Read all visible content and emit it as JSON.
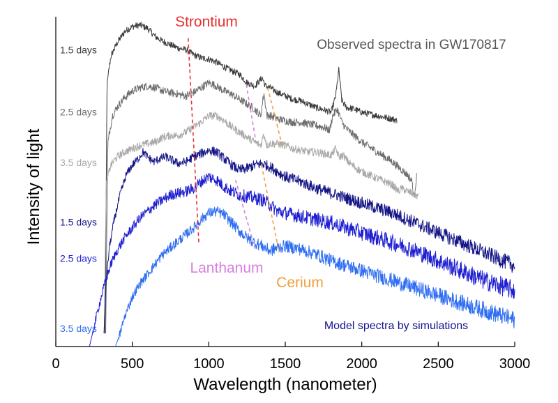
{
  "chart_data": {
    "type": "line",
    "xlabel": "Wavelength (nanometer)",
    "ylabel": "Intensity of light",
    "xlim": [
      0,
      3000
    ],
    "xticks": [
      0,
      500,
      1000,
      1500,
      2000,
      2500,
      3000
    ],
    "ylim": [
      0,
      1
    ],
    "grid": false,
    "annotations": {
      "strontium": "Strontium",
      "lanthanum": "Lanthanum",
      "cerium": "Cerium",
      "observed": "Observed spectra in GW170817",
      "model": "Model spectra by simulations"
    },
    "annotation_colors": {
      "strontium": "#e8302c",
      "lanthanum": "#d77ee0",
      "cerium": "#f0a040",
      "observed": "#555555",
      "model": "#14148c"
    },
    "series": [
      {
        "name": "1.5 days",
        "group": "observed",
        "color": "#3a3a3a",
        "noise": 0.01,
        "x": [
          322,
          335,
          360,
          400,
          450,
          500,
          550,
          600,
          650,
          700,
          750,
          800,
          850,
          900,
          950,
          1000,
          1050,
          1100,
          1150,
          1200,
          1250,
          1300,
          1350,
          1370,
          1400,
          1450,
          1500,
          1550,
          1600,
          1650,
          1700,
          1750,
          1800,
          1830,
          1850,
          1870,
          1900,
          1950,
          2000,
          2050,
          2100,
          2150,
          2200,
          2230
        ],
        "y": [
          0.04,
          0.8,
          0.88,
          0.92,
          0.955,
          0.97,
          0.975,
          0.965,
          0.94,
          0.925,
          0.915,
          0.905,
          0.9,
          0.885,
          0.875,
          0.872,
          0.862,
          0.848,
          0.836,
          0.826,
          0.8,
          0.79,
          0.815,
          0.79,
          0.785,
          0.77,
          0.76,
          0.75,
          0.745,
          0.735,
          0.725,
          0.718,
          0.71,
          0.76,
          0.84,
          0.745,
          0.725,
          0.72,
          0.71,
          0.705,
          0.7,
          0.695,
          0.69,
          0.685
        ]
      },
      {
        "name": "2.5 days",
        "group": "observed",
        "color": "#6e6e6e",
        "noise": 0.012,
        "x": [
          326,
          340,
          370,
          400,
          450,
          500,
          550,
          600,
          650,
          700,
          750,
          800,
          850,
          900,
          950,
          1000,
          1050,
          1100,
          1150,
          1200,
          1250,
          1300,
          1340,
          1360,
          1380,
          1400,
          1450,
          1500,
          1550,
          1600,
          1650,
          1700,
          1750,
          1790,
          1810,
          1840,
          1870,
          1900,
          1950,
          2000,
          2050,
          2100,
          2150,
          2200,
          2250,
          2300,
          2330,
          2340,
          2360
        ],
        "y": [
          0.04,
          0.62,
          0.7,
          0.725,
          0.755,
          0.775,
          0.785,
          0.79,
          0.785,
          0.775,
          0.77,
          0.765,
          0.76,
          0.77,
          0.785,
          0.8,
          0.79,
          0.775,
          0.765,
          0.75,
          0.735,
          0.72,
          0.7,
          0.77,
          0.7,
          0.7,
          0.69,
          0.685,
          0.68,
          0.68,
          0.675,
          0.67,
          0.665,
          0.655,
          0.7,
          0.72,
          0.68,
          0.66,
          0.64,
          0.62,
          0.605,
          0.59,
          0.575,
          0.56,
          0.54,
          0.52,
          0.5,
          0.45,
          0.52
        ]
      },
      {
        "name": "3.5 days",
        "group": "observed",
        "color": "#a8a8a8",
        "noise": 0.012,
        "x": [
          316,
          330,
          360,
          400,
          450,
          500,
          550,
          600,
          650,
          700,
          750,
          800,
          850,
          900,
          950,
          1000,
          1050,
          1100,
          1150,
          1200,
          1250,
          1300,
          1340,
          1360,
          1380,
          1400,
          1450,
          1500,
          1550,
          1600,
          1650,
          1700,
          1750,
          1800,
          1830,
          1850,
          1880,
          1900,
          1950,
          2000,
          2050,
          2100,
          2150,
          2200,
          2240,
          2260,
          2300,
          2350,
          2370
        ],
        "y": [
          0.04,
          0.5,
          0.55,
          0.575,
          0.59,
          0.6,
          0.61,
          0.615,
          0.62,
          0.635,
          0.64,
          0.64,
          0.65,
          0.665,
          0.68,
          0.7,
          0.7,
          0.685,
          0.665,
          0.65,
          0.635,
          0.62,
          0.61,
          0.645,
          0.61,
          0.615,
          0.615,
          0.61,
          0.6,
          0.595,
          0.59,
          0.59,
          0.585,
          0.58,
          0.6,
          0.575,
          0.58,
          0.565,
          0.545,
          0.53,
          0.52,
          0.51,
          0.5,
          0.49,
          0.47,
          0.48,
          0.47,
          0.46,
          0.455
        ]
      },
      {
        "name": "1.5 days",
        "group": "model",
        "color": "#141487",
        "noise": 0.016,
        "x": [
          315,
          330,
          350,
          380,
          420,
          460,
          500,
          540,
          570,
          600,
          640,
          680,
          720,
          760,
          800,
          850,
          900,
          950,
          1000,
          1050,
          1100,
          1150,
          1200,
          1250,
          1300,
          1350,
          1400,
          1450,
          1500,
          1600,
          1700,
          1800,
          1900,
          2000,
          2100,
          2200,
          2300,
          2400,
          2500,
          2600,
          2700,
          2800,
          2900,
          3000
        ],
        "y": [
          0.04,
          0.2,
          0.3,
          0.38,
          0.46,
          0.52,
          0.55,
          0.57,
          0.59,
          0.575,
          0.56,
          0.57,
          0.575,
          0.565,
          0.555,
          0.56,
          0.575,
          0.585,
          0.595,
          0.59,
          0.57,
          0.55,
          0.535,
          0.54,
          0.55,
          0.555,
          0.545,
          0.53,
          0.515,
          0.5,
          0.48,
          0.465,
          0.45,
          0.435,
          0.42,
          0.405,
          0.385,
          0.365,
          0.345,
          0.325,
          0.305,
          0.285,
          0.265,
          0.245
        ]
      },
      {
        "name": "2.5 days",
        "group": "model",
        "color": "#1e1ed2",
        "noise": 0.02,
        "x": [
          220,
          250,
          280,
          320,
          360,
          400,
          450,
          500,
          550,
          600,
          650,
          700,
          750,
          800,
          850,
          900,
          950,
          1000,
          1050,
          1100,
          1150,
          1200,
          1250,
          1300,
          1350,
          1400,
          1450,
          1500,
          1600,
          1700,
          1800,
          1900,
          2000,
          2100,
          2200,
          2300,
          2400,
          2500,
          2600,
          2700,
          2800,
          2900,
          3000
        ],
        "y": [
          0.0,
          0.06,
          0.12,
          0.19,
          0.25,
          0.29,
          0.33,
          0.36,
          0.39,
          0.41,
          0.43,
          0.445,
          0.46,
          0.465,
          0.47,
          0.48,
          0.5,
          0.515,
          0.505,
          0.485,
          0.47,
          0.46,
          0.455,
          0.45,
          0.445,
          0.43,
          0.41,
          0.405,
          0.395,
          0.385,
          0.375,
          0.36,
          0.345,
          0.33,
          0.315,
          0.3,
          0.28,
          0.26,
          0.24,
          0.22,
          0.2,
          0.185,
          0.17
        ]
      },
      {
        "name": "3.5 days",
        "group": "model",
        "color": "#2f6ef2",
        "noise": 0.018,
        "x": [
          390,
          420,
          450,
          500,
          550,
          600,
          650,
          700,
          750,
          800,
          850,
          900,
          950,
          1000,
          1050,
          1100,
          1150,
          1200,
          1250,
          1300,
          1350,
          1400,
          1450,
          1500,
          1600,
          1700,
          1800,
          1900,
          2000,
          2100,
          2200,
          2300,
          2400,
          2500,
          2600,
          2700,
          2800,
          2900,
          3000
        ],
        "y": [
          0.0,
          0.04,
          0.09,
          0.15,
          0.19,
          0.22,
          0.25,
          0.28,
          0.3,
          0.32,
          0.34,
          0.36,
          0.385,
          0.405,
          0.41,
          0.4,
          0.375,
          0.35,
          0.33,
          0.315,
          0.305,
          0.29,
          0.3,
          0.305,
          0.295,
          0.28,
          0.26,
          0.245,
          0.23,
          0.215,
          0.2,
          0.185,
          0.17,
          0.155,
          0.14,
          0.125,
          0.11,
          0.095,
          0.08
        ]
      }
    ],
    "guides": [
      {
        "element": "strontium",
        "color": "#e8302c",
        "x": [
          865,
          935
        ],
        "y": [
          0.935,
          0.315
        ]
      },
      {
        "element": "lanthanum",
        "color": "#d77ee0",
        "x": [
          1245,
          1305
        ],
        "y": [
          0.795,
          0.63
        ]
      },
      {
        "element": "cerium",
        "color": "#f0a040",
        "x": [
          1385,
          1485
        ],
        "y": [
          0.785,
          0.6
        ]
      },
      {
        "element": "lanthanum",
        "color": "#d77ee0",
        "x": [
          1175,
          1300
        ],
        "y": [
          0.505,
          0.3
        ]
      },
      {
        "element": "cerium",
        "color": "#f0a040",
        "x": [
          1345,
          1460
        ],
        "y": [
          0.55,
          0.285
        ]
      }
    ]
  }
}
